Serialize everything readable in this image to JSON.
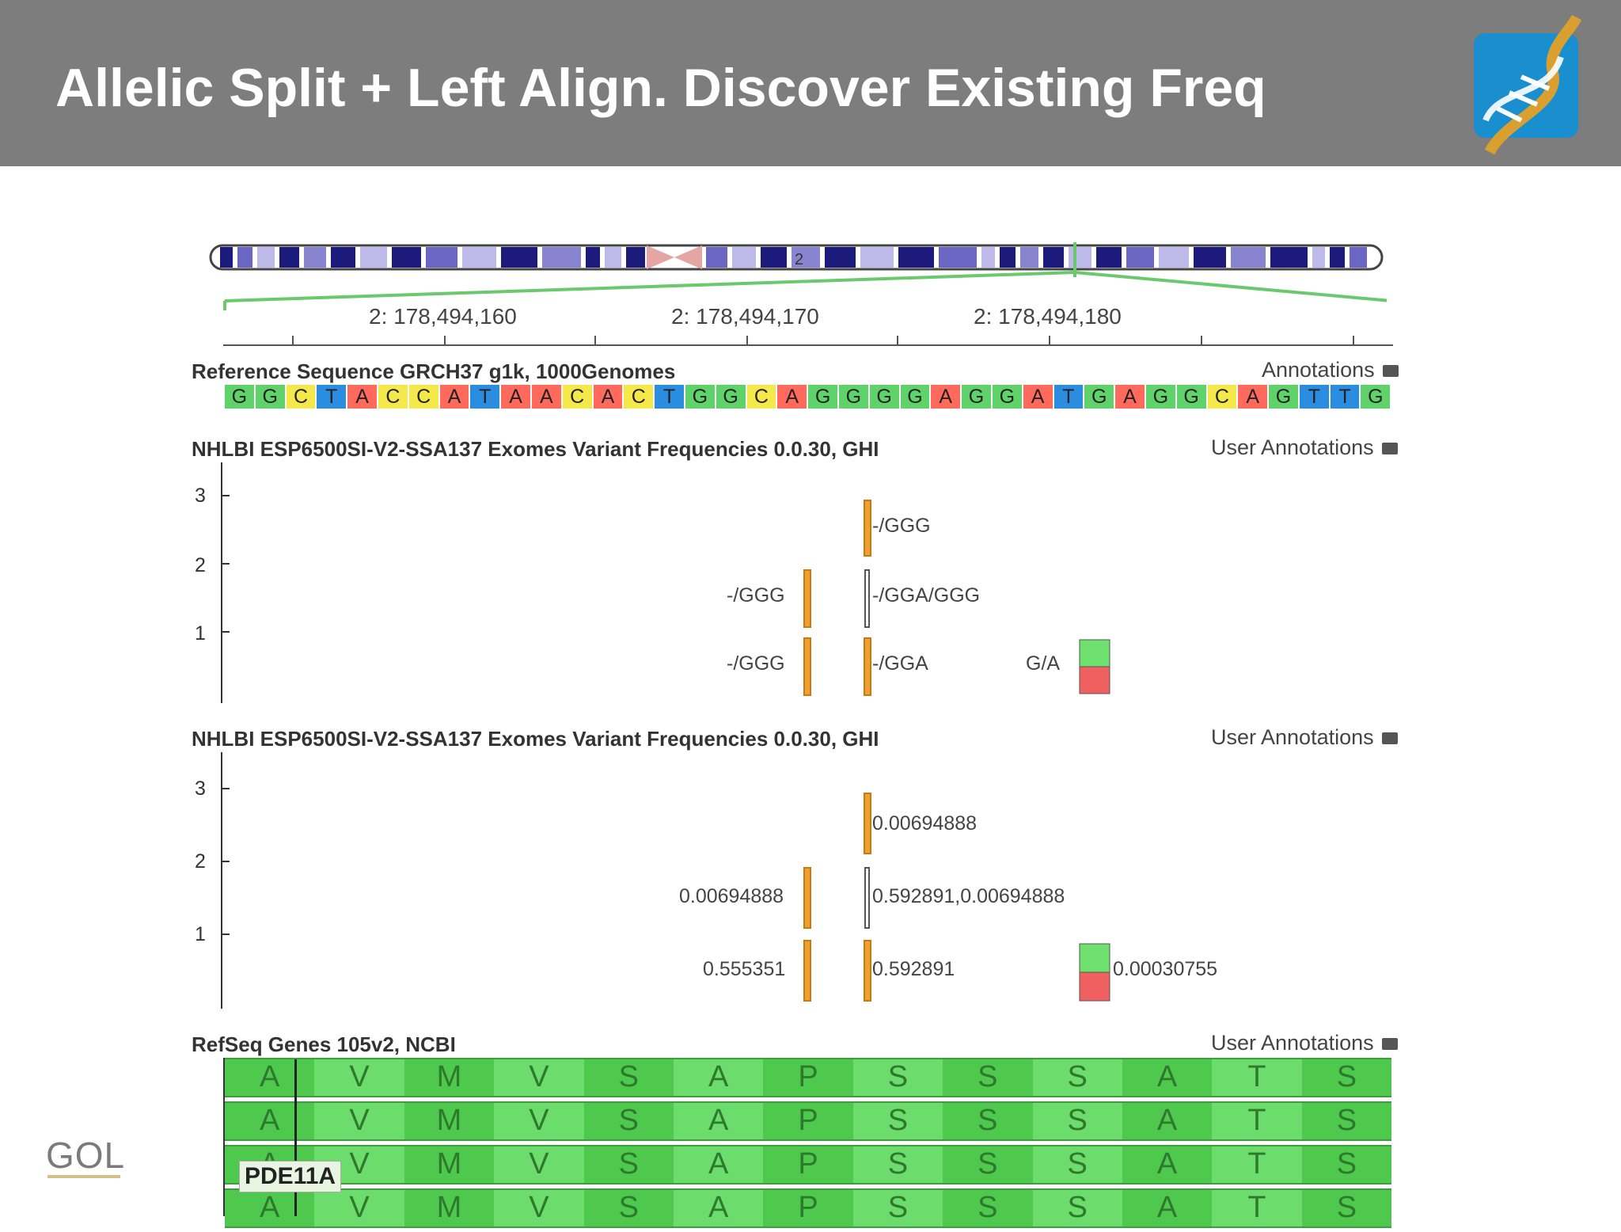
{
  "slide": {
    "title": "Allelic Split + Left Align. Discover Existing Freq",
    "corner_logo_text": "GOL"
  },
  "ideogram": {
    "chromosome_label": "2"
  },
  "ruler": {
    "coords": [
      "2: 178,494,160",
      "2: 178,494,170",
      "2: 178,494,180"
    ]
  },
  "reference_track": {
    "title": "Reference Sequence GRCH37 g1k, 1000Genomes",
    "right_label": "Annotations",
    "bases": [
      "G",
      "G",
      "C",
      "T",
      "A",
      "C",
      "C",
      "A",
      "T",
      "A",
      "A",
      "C",
      "A",
      "C",
      "T",
      "G",
      "G",
      "C",
      "A",
      "G",
      "G",
      "G",
      "G",
      "A",
      "G",
      "G",
      "A",
      "T",
      "G",
      "A",
      "G",
      "G",
      "C",
      "A",
      "G",
      "T",
      "T",
      "G"
    ]
  },
  "track1": {
    "title": "NHLBI ESP6500SI-V2-SSA137 Exomes Variant Frequencies 0.0.30, GHI",
    "right_label": "User Annotations",
    "y_ticks": [
      "3",
      "2",
      "1"
    ],
    "labels": {
      "top": "-/GGG",
      "mid_left": "-/GGG",
      "mid_right": "-/GGA/GGG",
      "low_left": "-/GGG",
      "low_right": "-/GGA",
      "snv": "G/A"
    }
  },
  "track2": {
    "title": "NHLBI ESP6500SI-V2-SSA137 Exomes Variant Frequencies 0.0.30, GHI",
    "right_label": "User Annotations",
    "y_ticks": [
      "3",
      "2",
      "1"
    ],
    "labels": {
      "top": "0.00694888",
      "mid_left": "0.00694888",
      "mid_right": "0.592891,0.00694888",
      "low_left": "0.555351",
      "low_right": "0.592891",
      "snv": "0.00030755"
    }
  },
  "gene_track": {
    "title": "RefSeq Genes 105v2, NCBI",
    "right_label": "User Annotations",
    "gene_name": "PDE11A",
    "amino_acids": [
      "A",
      "V",
      "M",
      "V",
      "S",
      "A",
      "P",
      "S",
      "S",
      "S",
      "A",
      "T",
      "S"
    ],
    "row_count": 4
  },
  "colors": {
    "header_bg": "#7d7d7d",
    "variant_orange": "#f0a030",
    "ref_green": "#6ee06e",
    "alt_red": "#f06060",
    "highlight_green": "#6cc86c"
  }
}
